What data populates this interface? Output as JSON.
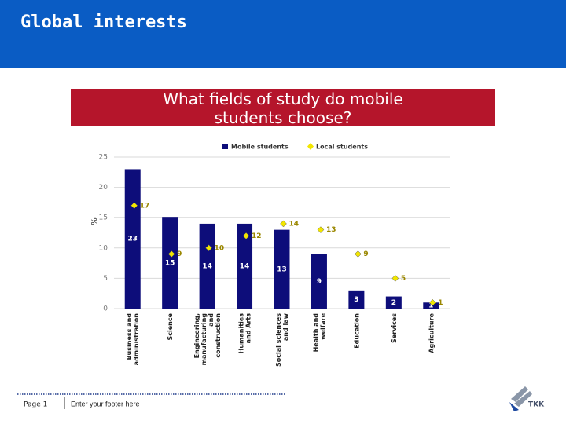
{
  "header": {
    "title": "Global interests"
  },
  "chart_data": {
    "type": "bar",
    "title": "What fields of study do mobile students choose?",
    "ylabel": "%",
    "categories": [
      [
        "Business and",
        "administration"
      ],
      [
        "Science"
      ],
      [
        "Engineering,",
        "manufacturing",
        "and",
        "construction"
      ],
      [
        "Humanities",
        "and Arts"
      ],
      [
        "Social sciences",
        "and law"
      ],
      [
        "Health and",
        "welfare"
      ],
      [
        "Education"
      ],
      [
        "Services"
      ],
      [
        "Agriculture"
      ]
    ],
    "series": [
      {
        "name": "Mobile students",
        "color": "#0d0d7a",
        "values": [
          23,
          15,
          14,
          14,
          13,
          9,
          3,
          2,
          1
        ]
      },
      {
        "name": "Local students",
        "color": "#f2e600",
        "values": [
          17,
          9,
          10,
          12,
          14,
          13,
          9,
          5,
          1
        ]
      }
    ],
    "ylim": [
      0,
      25
    ],
    "yticks": [
      0,
      5,
      10,
      15,
      20,
      25
    ],
    "grid": true
  },
  "footer": {
    "page": "Page 1",
    "text": "Enter your footer here",
    "logo": "TKK"
  }
}
